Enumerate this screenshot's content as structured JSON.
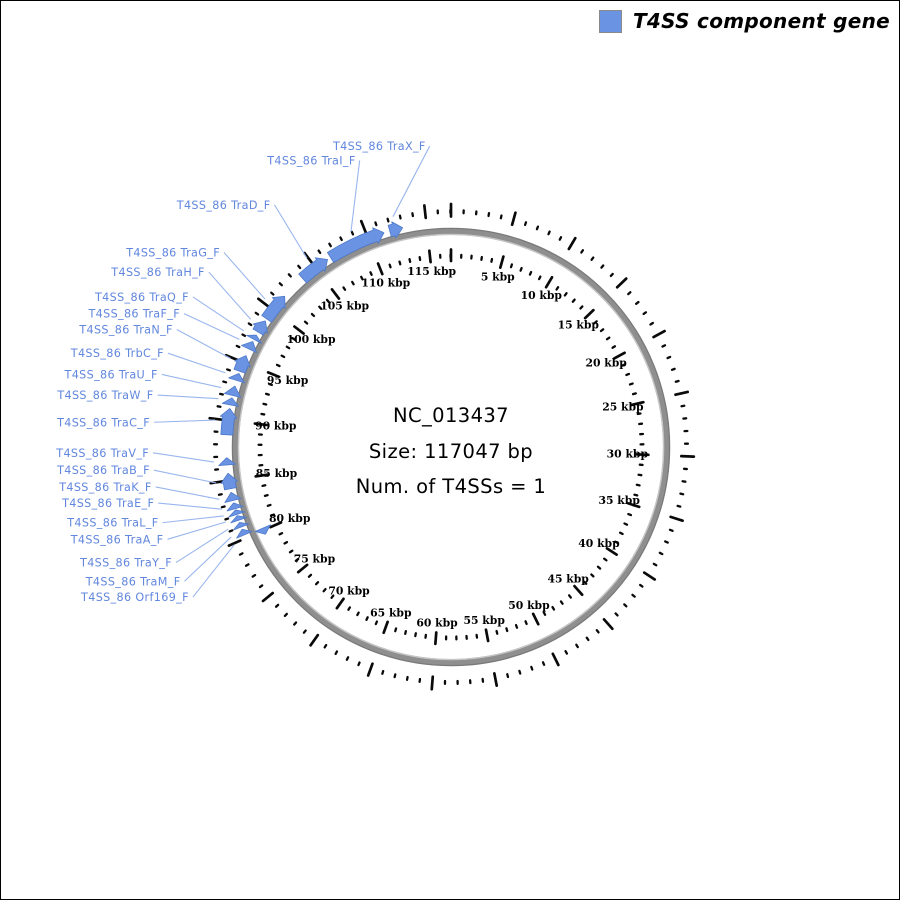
{
  "legend": {
    "label": "T4SS component gene",
    "color": "#6a93e3"
  },
  "center": {
    "accession": "NC_013437",
    "size_line": "Size: 117047 bp",
    "t4ss_line": "Num. of T4SSs = 1"
  },
  "chart_data": {
    "type": "circular_genome_map",
    "title": "NC_013437",
    "genome_size_bp": 117047,
    "num_t4ss": 1,
    "ruler": {
      "unit": "kbp",
      "minor_interval_kbp": 1,
      "major_interval_kbp": 5,
      "major_ticks_kbp": [
        5,
        10,
        15,
        20,
        25,
        30,
        35,
        40,
        45,
        50,
        55,
        60,
        65,
        70,
        75,
        80,
        85,
        90,
        95,
        100,
        105,
        110,
        115
      ]
    },
    "genes": [
      {
        "label": "T4SS_86 TraX_F",
        "start_kbp": 111.9,
        "end_kbp": 113.0,
        "strand": "forward"
      },
      {
        "label": "T4SS_86 TraI_F",
        "start_kbp": 106.5,
        "end_kbp": 111.4,
        "strand": "forward"
      },
      {
        "label": "T4SS_86 TraD_F",
        "start_kbp": 103.6,
        "end_kbp": 106.2,
        "strand": "forward"
      },
      {
        "label": "T4SS_86 TraG_F",
        "start_kbp": 99.1,
        "end_kbp": 101.5,
        "strand": "forward"
      },
      {
        "label": "T4SS_86 TraH_F",
        "start_kbp": 97.8,
        "end_kbp": 98.9,
        "strand": "forward"
      },
      {
        "label": "T4SS_86 TraQ_F",
        "start_kbp": 97.1,
        "end_kbp": 97.5,
        "strand": "forward"
      },
      {
        "label": "T4SS_86 TraF_F",
        "start_kbp": 96.2,
        "end_kbp": 96.9,
        "strand": "forward"
      },
      {
        "label": "T4SS_86 TraN_F",
        "start_kbp": 94.2,
        "end_kbp": 95.6,
        "strand": "forward"
      },
      {
        "label": "T4SS_86 TrbC_F",
        "start_kbp": 93.4,
        "end_kbp": 94.0,
        "strand": "forward"
      },
      {
        "label": "T4SS_86 TraU_F",
        "start_kbp": 92.1,
        "end_kbp": 92.9,
        "strand": "forward"
      },
      {
        "label": "T4SS_86 TraW_F",
        "start_kbp": 91.3,
        "end_kbp": 91.9,
        "strand": "forward"
      },
      {
        "label": "T4SS_86 TraC_F",
        "start_kbp": 88.8,
        "end_kbp": 91.0,
        "strand": "forward"
      },
      {
        "label": "T4SS_86 TraV_F",
        "start_kbp": 86.3,
        "end_kbp": 86.9,
        "strand": "forward"
      },
      {
        "label": "T4SS_86 TraB_F",
        "start_kbp": 84.3,
        "end_kbp": 85.6,
        "strand": "forward"
      },
      {
        "label": "T4SS_86 TraK_F",
        "start_kbp": 83.3,
        "end_kbp": 84.0,
        "strand": "forward"
      },
      {
        "label": "T4SS_86 TraE_F",
        "start_kbp": 82.6,
        "end_kbp": 83.1,
        "strand": "forward"
      },
      {
        "label": "T4SS_86 TraL_F",
        "start_kbp": 82.1,
        "end_kbp": 82.5,
        "strand": "forward"
      },
      {
        "label": "T4SS_86 TraA_F",
        "start_kbp": 81.6,
        "end_kbp": 82.0,
        "strand": "forward"
      },
      {
        "label": "T4SS_86 TraY_F",
        "start_kbp": 81.0,
        "end_kbp": 81.4,
        "strand": "forward"
      },
      {
        "label": "T4SS_86 TraM_F",
        "start_kbp": 80.3,
        "end_kbp": 80.8,
        "strand": "forward"
      },
      {
        "label": "T4SS_86 Orf169_F",
        "start_kbp": 79.6,
        "end_kbp": 80.2,
        "strand": "reverse"
      }
    ]
  },
  "colors": {
    "gene_fill": "#6a93e3",
    "gene_stroke": "#4d79c9",
    "gene_label_text": "#6287de",
    "leader_line": "#9ab6ee",
    "backbone": "#8f8f8f",
    "tick": "#0a0a0a"
  }
}
